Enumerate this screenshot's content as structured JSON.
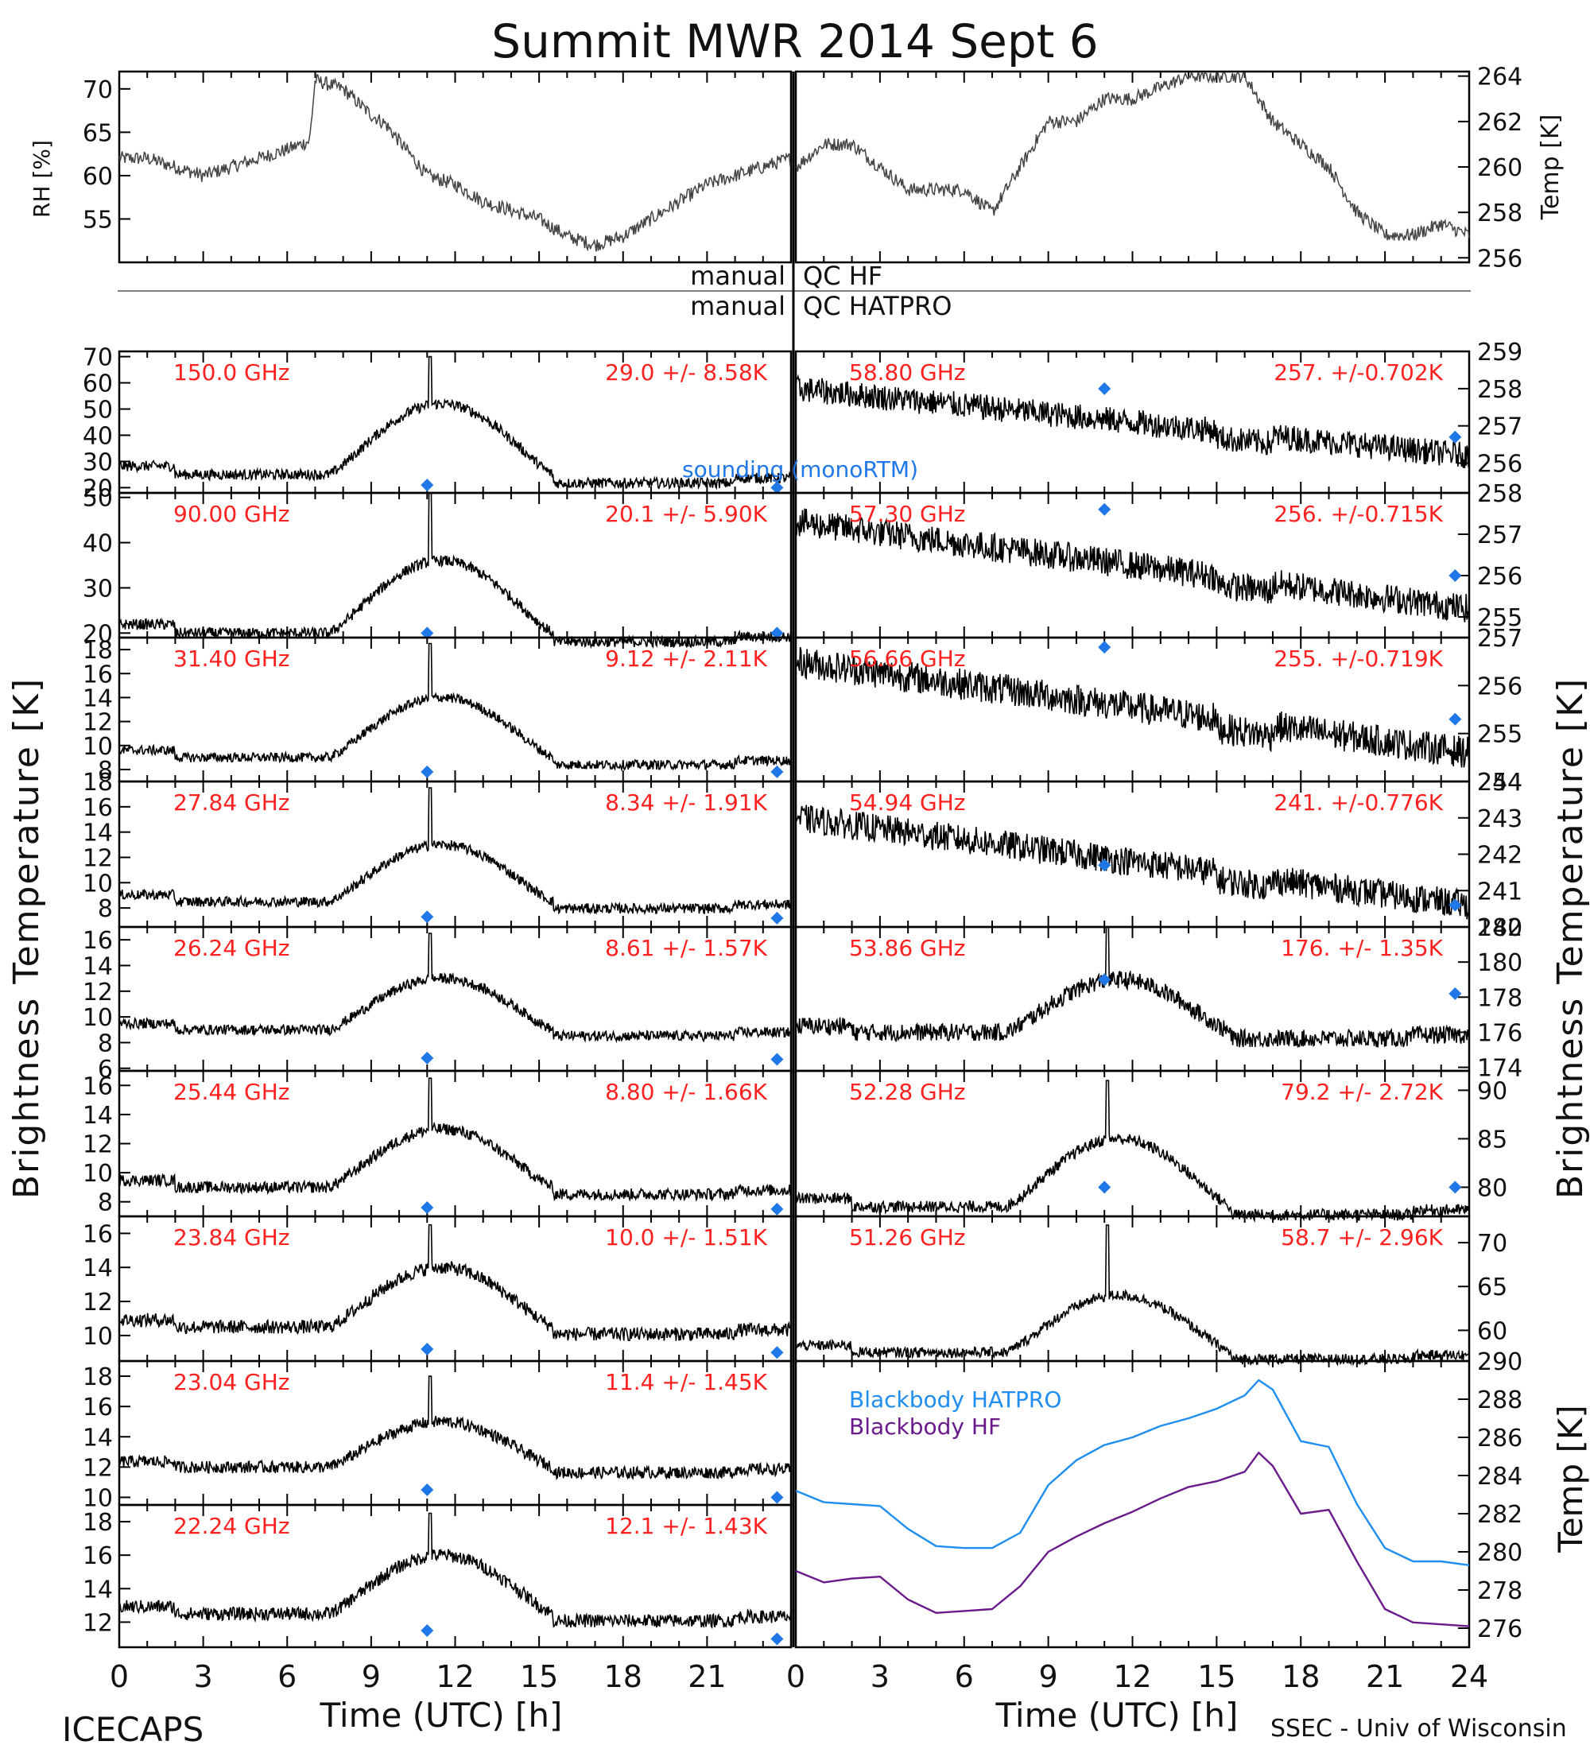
{
  "title": "Summit MWR 2014 Sept  6",
  "footer": {
    "left": "ICECAPS",
    "right": "SSEC - Univ of Wisconsin"
  },
  "qc": {
    "left1": "manual",
    "right1": "QC HF",
    "left2": "manual",
    "right2": "QC HATPRO"
  },
  "axis_titles": {
    "left_main": "Brightness Temperature [K]",
    "right_main": "Brightness Temperature [K]",
    "rh": "RH [%]",
    "temp_top": "Temp [K]",
    "temp_bottom": "Temp [K]",
    "x_left": "Time (UTC) [h]",
    "x_right": "Time (UTC) [h]"
  },
  "x_ticks": [
    "0",
    "3",
    "6",
    "9",
    "12",
    "15",
    "18",
    "21",
    "0",
    "3",
    "6",
    "9",
    "12",
    "15",
    "18",
    "21",
    "24"
  ],
  "legend_sounding": "sounding (monoRTM)",
  "legend_bb": [
    "Blackbody HATPRO",
    "Blackbody HF"
  ],
  "colors": {
    "label": "#ff2020",
    "sounding": "#1f77e8",
    "hatpro": "#1f8ef0",
    "hf": "#6a1a8a",
    "trace": "#000000"
  },
  "chart_data": {
    "type": "line",
    "x_unit": "UTC hour",
    "xlim": [
      0,
      24
    ],
    "top_panels": [
      {
        "ylabel": "RH [%]",
        "ylim": [
          50,
          72
        ],
        "ticks": [
          "55",
          "60",
          "65",
          "70"
        ],
        "x": [
          0,
          1,
          2,
          3,
          4,
          5,
          6,
          6.8,
          7,
          8,
          9,
          9.5,
          10,
          11,
          12,
          13,
          14,
          15,
          16,
          17,
          18,
          19,
          20,
          21,
          22,
          23,
          24
        ],
        "y": [
          62,
          62,
          61,
          60,
          61,
          62,
          63,
          64,
          71,
          70,
          67,
          66,
          64,
          60,
          59,
          57,
          56,
          55,
          53,
          52,
          53,
          55,
          57,
          59,
          60,
          61,
          62
        ]
      },
      {
        "ylabel": "Temp [K]",
        "ylim": [
          255.8,
          264.2
        ],
        "ticks": [
          "256",
          "258",
          "260",
          "262",
          "264"
        ],
        "x": [
          0,
          1,
          2,
          3,
          4,
          5,
          6,
          7,
          8,
          9,
          10,
          11,
          12,
          13,
          14,
          15,
          16,
          17,
          18,
          19,
          20,
          21,
          22,
          23,
          24
        ],
        "y": [
          260,
          261,
          261,
          260,
          259,
          259,
          259,
          258,
          260,
          262,
          262,
          263,
          263,
          263.5,
          264,
          264,
          264,
          262,
          261,
          260,
          258,
          257,
          257,
          257.5,
          257
        ]
      }
    ],
    "channels_left": [
      {
        "freq": "150.0 GHz",
        "stat": "29.0 +/-  8.58K",
        "ylim": [
          18,
          72
        ],
        "ticks": [
          "20",
          "30",
          "40",
          "50",
          "60",
          "70"
        ],
        "base": 25,
        "peak": 52,
        "spike": 70,
        "noise": 2.0,
        "sounding": [
          [
            11,
            21
          ],
          [
            23.5,
            20
          ]
        ]
      },
      {
        "freq": "90.00 GHz",
        "stat": "20.1 +/-  5.90K",
        "ylim": [
          19,
          51
        ],
        "ticks": [
          "20",
          "30",
          "40",
          "50"
        ],
        "base": 20,
        "peak": 36,
        "spike": 51,
        "noise": 1.2,
        "sounding": [
          [
            11,
            20
          ],
          [
            23.5,
            20
          ]
        ]
      },
      {
        "freq": "31.40 GHz",
        "stat": "9.12 +/- 2.11K",
        "ylim": [
          7,
          19
        ],
        "ticks": [
          "8",
          "10",
          "12",
          "14",
          "16",
          "18"
        ],
        "base": 9,
        "peak": 14,
        "spike": 18.5,
        "noise": 0.4,
        "sounding": [
          [
            11,
            7.8
          ],
          [
            23.5,
            7.8
          ]
        ]
      },
      {
        "freq": "27.84 GHz",
        "stat": "8.34 +/- 1.91K",
        "ylim": [
          6.5,
          18
        ],
        "ticks": [
          "8",
          "10",
          "12",
          "14",
          "16",
          "18"
        ],
        "base": 8.5,
        "peak": 13,
        "spike": 17.5,
        "noise": 0.4,
        "sounding": [
          [
            11,
            7.3
          ],
          [
            23.5,
            7.2
          ]
        ]
      },
      {
        "freq": "26.24 GHz",
        "stat": "8.61 +/- 1.57K",
        "ylim": [
          5.8,
          17
        ],
        "ticks": [
          "6",
          "8",
          "10",
          "12",
          "14",
          "16"
        ],
        "base": 9,
        "peak": 13,
        "spike": 16.5,
        "noise": 0.4,
        "sounding": [
          [
            11,
            6.8
          ],
          [
            23.5,
            6.7
          ]
        ]
      },
      {
        "freq": "25.44 GHz",
        "stat": "8.80 +/- 1.66K",
        "ylim": [
          7,
          17
        ],
        "ticks": [
          "8",
          "10",
          "12",
          "14",
          "16"
        ],
        "base": 9,
        "peak": 13,
        "spike": 16.5,
        "noise": 0.4,
        "sounding": [
          [
            11,
            7.6
          ],
          [
            23.5,
            7.5
          ]
        ]
      },
      {
        "freq": "23.84 GHz",
        "stat": "10.0 +/- 1.51K",
        "ylim": [
          8.5,
          17
        ],
        "ticks": [
          "10",
          "12",
          "14",
          "16"
        ],
        "base": 10.5,
        "peak": 14,
        "spike": 16.5,
        "noise": 0.4,
        "sounding": [
          [
            11,
            9.2
          ],
          [
            23.5,
            9
          ]
        ]
      },
      {
        "freq": "23.04 GHz",
        "stat": "11.4 +/- 1.45K",
        "ylim": [
          9.5,
          19
        ],
        "ticks": [
          "10",
          "12",
          "14",
          "16",
          "18"
        ],
        "base": 12,
        "peak": 15,
        "spike": 18,
        "noise": 0.4,
        "sounding": [
          [
            11,
            10.5
          ],
          [
            23.5,
            10
          ]
        ]
      },
      {
        "freq": "22.24 GHz",
        "stat": "12.1 +/- 1.43K",
        "ylim": [
          10.5,
          19
        ],
        "ticks": [
          "12",
          "14",
          "16",
          "18"
        ],
        "base": 12.5,
        "peak": 16,
        "spike": 18.5,
        "noise": 0.4,
        "sounding": [
          [
            11,
            11.5
          ],
          [
            23.5,
            11
          ]
        ]
      }
    ],
    "channels_right": [
      {
        "freq": "58.80 GHz",
        "stat": "257. +/-0.702K",
        "ylim": [
          255.2,
          259
        ],
        "ticks": [
          "256",
          "257",
          "258",
          "259"
        ],
        "start": 258,
        "end": 256.2,
        "noise": 0.35,
        "sounding": [
          [
            11,
            258
          ],
          [
            23.5,
            256.7
          ]
        ]
      },
      {
        "freq": "57.30 GHz",
        "stat": "256. +/-0.715K",
        "ylim": [
          254.5,
          258
        ],
        "ticks": [
          "255",
          "256",
          "257",
          "258"
        ],
        "start": 257.3,
        "end": 255.2,
        "noise": 0.35,
        "sounding": [
          [
            11,
            257.6
          ],
          [
            23.5,
            256
          ]
        ]
      },
      {
        "freq": "56.66 GHz",
        "stat": "255. +/-0.719K",
        "ylim": [
          254,
          257
        ],
        "ticks": [
          "254",
          "255",
          "256",
          "257"
        ],
        "start": 256.5,
        "end": 254.6,
        "noise": 0.33,
        "sounding": [
          [
            11,
            256.8
          ],
          [
            23.5,
            255.3
          ]
        ]
      },
      {
        "freq": "54.94 GHz",
        "stat": "241. +/-0.776K",
        "ylim": [
          240,
          244
        ],
        "ticks": [
          "240",
          "241",
          "242",
          "243",
          "244"
        ],
        "start": 243,
        "end": 240.6,
        "noise": 0.4,
        "sounding": [
          [
            11,
            241.7
          ],
          [
            23.5,
            240.6
          ]
        ]
      },
      {
        "freq": "53.86 GHz",
        "stat": "176. +/- 1.35K",
        "ylim": [
          173.8,
          182
        ],
        "ticks": [
          "174",
          "176",
          "178",
          "180",
          "182"
        ],
        "base": 176,
        "peak": 179,
        "spike": 182,
        "noise": 0.5,
        "sounding": [
          [
            11,
            179
          ],
          [
            23.5,
            178.2
          ]
        ]
      },
      {
        "freq": "52.28 GHz",
        "stat": "79.2 +/- 2.72K",
        "ylim": [
          77,
          92
        ],
        "ticks": [
          "80",
          "85",
          "90"
        ],
        "base": 78,
        "peak": 85,
        "spike": 91,
        "noise": 0.6,
        "sounding": [
          [
            11,
            80
          ],
          [
            23.5,
            80
          ]
        ]
      },
      {
        "freq": "51.26 GHz",
        "stat": "58.7 +/- 2.96K",
        "ylim": [
          56.5,
          73
        ],
        "ticks": [
          "60",
          "65",
          "70"
        ],
        "base": 57.5,
        "peak": 64,
        "spike": 72,
        "noise": 0.6,
        "sounding": []
      }
    ],
    "blackbody": {
      "ylim": [
        275,
        290
      ],
      "ticks": [
        "276",
        "278",
        "280",
        "282",
        "284",
        "286",
        "288",
        "290"
      ],
      "x": [
        0,
        1,
        2,
        3,
        4,
        5,
        6,
        7,
        8,
        9,
        10,
        11,
        12,
        13,
        14,
        15,
        16,
        16.5,
        17,
        18,
        19,
        20,
        21,
        22,
        23,
        24
      ],
      "hatpro": [
        283.2,
        282.6,
        282.5,
        282.4,
        281.2,
        280.3,
        280.2,
        280.2,
        281.0,
        283.5,
        284.8,
        285.6,
        286.0,
        286.6,
        287.0,
        287.5,
        288.2,
        289.0,
        288.5,
        285.8,
        285.5,
        282.5,
        280.2,
        279.5,
        279.5,
        279.3
      ],
      "hf": [
        279.0,
        278.4,
        278.6,
        278.7,
        277.5,
        276.8,
        276.9,
        277.0,
        278.2,
        280.0,
        280.8,
        281.5,
        282.1,
        282.8,
        283.4,
        283.7,
        284.2,
        285.2,
        284.5,
        282.0,
        282.2,
        279.5,
        277.0,
        276.3,
        276.2,
        276.1
      ]
    }
  }
}
